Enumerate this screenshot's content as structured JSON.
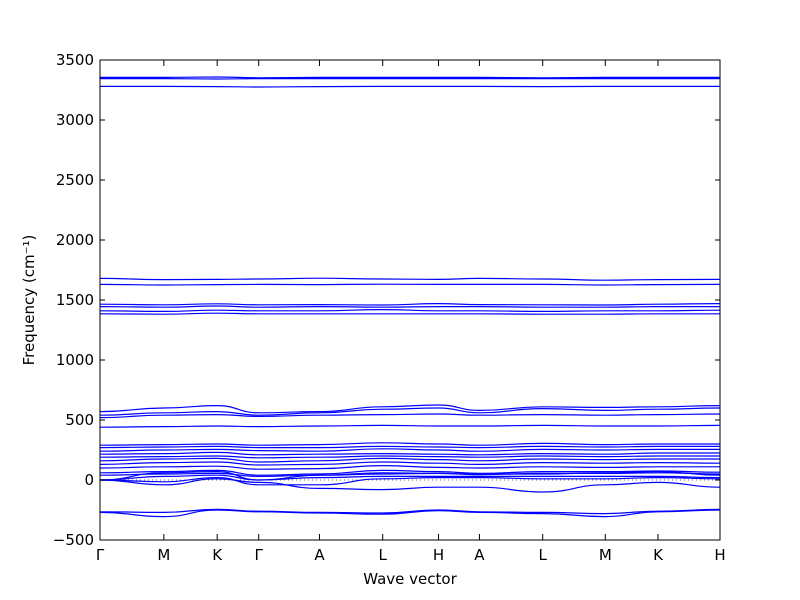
{
  "chart_data": {
    "type": "line",
    "title": "",
    "xlabel": "Wave vector",
    "ylabel": "Frequency (cm⁻¹)",
    "ylim": [
      -500,
      3500
    ],
    "yticks": [
      -500,
      0,
      500,
      1000,
      1500,
      2000,
      2500,
      3000,
      3500
    ],
    "x_tick_labels": [
      "Γ",
      "M",
      "K",
      "Γ",
      "A",
      "L",
      "H",
      "A",
      "L",
      "M",
      "K",
      "H"
    ],
    "x_tick_positions": [
      0,
      0.103,
      0.189,
      0.256,
      0.354,
      0.456,
      0.546,
      0.612,
      0.714,
      0.815,
      0.9,
      1.0
    ],
    "zero_line": "dotted",
    "grid": false,
    "legend": "none",
    "line_color": "#0000ff",
    "series": [
      {
        "values": [
          3355,
          3355,
          3358,
          3352,
          3355,
          3355,
          3355,
          3355,
          3352,
          3355,
          3355,
          3355
        ]
      },
      {
        "values": [
          3345,
          3345,
          3342,
          3345,
          3345,
          3345,
          3345,
          3345,
          3345,
          3345,
          3345,
          3345
        ]
      },
      {
        "values": [
          3280,
          3280,
          3278,
          3275,
          3278,
          3280,
          3280,
          3280,
          3278,
          3280,
          3280,
          3280
        ]
      },
      {
        "values": [
          1680,
          1670,
          1672,
          1675,
          1682,
          1675,
          1672,
          1680,
          1675,
          1665,
          1670,
          1672
        ]
      },
      {
        "values": [
          1630,
          1625,
          1628,
          1630,
          1628,
          1632,
          1630,
          1630,
          1630,
          1625,
          1628,
          1630
        ]
      },
      {
        "values": [
          1465,
          1460,
          1468,
          1460,
          1462,
          1458,
          1470,
          1462,
          1460,
          1458,
          1465,
          1470
        ]
      },
      {
        "values": [
          1445,
          1440,
          1450,
          1440,
          1445,
          1440,
          1445,
          1445,
          1440,
          1440,
          1445,
          1445
        ]
      },
      {
        "values": [
          1410,
          1405,
          1415,
          1410,
          1410,
          1420,
          1410,
          1410,
          1405,
          1410,
          1410,
          1415
        ]
      },
      {
        "values": [
          1385,
          1382,
          1390,
          1385,
          1385,
          1385,
          1385,
          1385,
          1382,
          1382,
          1385,
          1385
        ]
      },
      {
        "values": [
          570,
          600,
          620,
          560,
          570,
          610,
          625,
          580,
          610,
          605,
          610,
          620
        ]
      },
      {
        "values": [
          540,
          560,
          570,
          540,
          560,
          590,
          600,
          560,
          595,
          580,
          590,
          600
        ]
      },
      {
        "values": [
          520,
          540,
          545,
          530,
          540,
          545,
          550,
          540,
          545,
          540,
          545,
          550
        ]
      },
      {
        "values": [
          440,
          445,
          450,
          445,
          450,
          455,
          450,
          450,
          455,
          450,
          450,
          455
        ]
      },
      {
        "values": [
          290,
          295,
          300,
          290,
          295,
          310,
          300,
          290,
          305,
          295,
          300,
          300
        ]
      },
      {
        "values": [
          270,
          275,
          280,
          270,
          270,
          280,
          275,
          270,
          280,
          275,
          280,
          280
        ]
      },
      {
        "values": [
          240,
          250,
          255,
          245,
          240,
          260,
          250,
          240,
          255,
          250,
          255,
          255
        ]
      },
      {
        "values": [
          215,
          220,
          230,
          210,
          215,
          220,
          215,
          210,
          220,
          215,
          225,
          225
        ]
      },
      {
        "values": [
          190,
          195,
          200,
          185,
          190,
          200,
          195,
          190,
          200,
          195,
          200,
          200
        ]
      },
      {
        "values": [
          160,
          175,
          180,
          150,
          160,
          180,
          170,
          160,
          175,
          170,
          175,
          175
        ]
      },
      {
        "values": [
          130,
          145,
          150,
          125,
          130,
          150,
          140,
          130,
          145,
          140,
          145,
          140
        ]
      },
      {
        "values": [
          100,
          110,
          115,
          90,
          95,
          120,
          105,
          100,
          110,
          105,
          110,
          110
        ]
      },
      {
        "values": [
          60,
          70,
          80,
          40,
          50,
          80,
          70,
          55,
          70,
          70,
          75,
          65
        ]
      },
      {
        "values": [
          40,
          50,
          55,
          30,
          40,
          60,
          55,
          45,
          55,
          55,
          60,
          50
        ]
      },
      {
        "values": [
          0,
          60,
          70,
          0,
          40,
          50,
          55,
          50,
          50,
          60,
          70,
          40
        ]
      },
      {
        "values": [
          0,
          30,
          40,
          0,
          20,
          30,
          30,
          30,
          30,
          30,
          30,
          20
        ]
      },
      {
        "values": [
          0,
          -15,
          20,
          -40,
          -40,
          10,
          20,
          20,
          10,
          10,
          20,
          10
        ]
      },
      {
        "values": [
          0,
          -40,
          10,
          -20,
          -70,
          -80,
          -60,
          -60,
          -100,
          -40,
          -20,
          -60
        ]
      },
      {
        "values": [
          -265,
          -270,
          -245,
          -260,
          -270,
          -275,
          -250,
          -265,
          -270,
          -280,
          -260,
          -245
        ]
      },
      {
        "values": [
          -270,
          -305,
          -250,
          -265,
          -275,
          -285,
          -255,
          -270,
          -280,
          -305,
          -265,
          -250
        ]
      }
    ]
  }
}
